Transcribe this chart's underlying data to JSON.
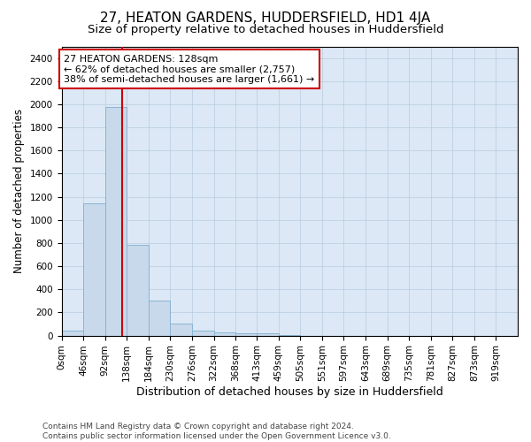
{
  "title1": "27, HEATON GARDENS, HUDDERSFIELD, HD1 4JA",
  "title2": "Size of property relative to detached houses in Huddersfield",
  "xlabel": "Distribution of detached houses by size in Huddersfield",
  "ylabel": "Number of detached properties",
  "footnote": "Contains HM Land Registry data © Crown copyright and database right 2024.\nContains public sector information licensed under the Open Government Licence v3.0.",
  "bin_labels": [
    "0sqm",
    "46sqm",
    "92sqm",
    "138sqm",
    "184sqm",
    "230sqm",
    "276sqm",
    "322sqm",
    "368sqm",
    "413sqm",
    "459sqm",
    "505sqm",
    "551sqm",
    "597sqm",
    "643sqm",
    "689sqm",
    "735sqm",
    "781sqm",
    "827sqm",
    "873sqm",
    "919sqm"
  ],
  "bin_edges": [
    0,
    46,
    92,
    138,
    184,
    230,
    276,
    322,
    368,
    413,
    459,
    505,
    551,
    597,
    643,
    689,
    735,
    781,
    827,
    873,
    919,
    965
  ],
  "bar_values": [
    40,
    1140,
    1980,
    785,
    300,
    105,
    40,
    25,
    20,
    20,
    5,
    0,
    0,
    0,
    0,
    0,
    0,
    0,
    0,
    0,
    0
  ],
  "bar_color": "#c8d9eb",
  "bar_edgecolor": "#8ab4d4",
  "grid_color": "#b8ccdf",
  "background_color": "#dce8f5",
  "property_size": 128,
  "vline_color": "#cc0000",
  "annotation_text": "27 HEATON GARDENS: 128sqm\n← 62% of detached houses are smaller (2,757)\n38% of semi-detached houses are larger (1,661) →",
  "annotation_box_edgecolor": "#cc0000",
  "ylim": [
    0,
    2500
  ],
  "yticks": [
    0,
    200,
    400,
    600,
    800,
    1000,
    1200,
    1400,
    1600,
    1800,
    2000,
    2200,
    2400
  ],
  "title1_fontsize": 11,
  "title2_fontsize": 9.5,
  "xlabel_fontsize": 9,
  "ylabel_fontsize": 8.5,
  "tick_fontsize": 7.5,
  "annotation_fontsize": 8,
  "footnote_fontsize": 6.5
}
